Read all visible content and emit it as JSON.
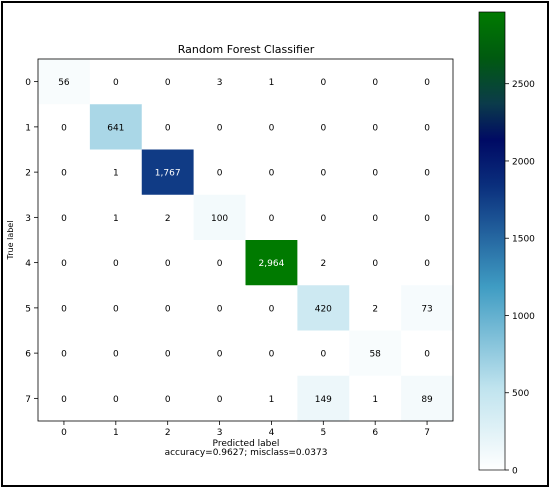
{
  "chart_data": {
    "type": "heatmap",
    "title": "Random Forest Classifier",
    "xlabel": "Predicted label",
    "ylabel": "True label",
    "footnote": "accuracy=0.9627; misclass=0.0373",
    "x_ticks": [
      "0",
      "1",
      "2",
      "3",
      "4",
      "5",
      "6",
      "7"
    ],
    "y_ticks": [
      "0",
      "1",
      "2",
      "3",
      "4",
      "5",
      "6",
      "7"
    ],
    "values": [
      [
        56,
        0,
        0,
        3,
        1,
        0,
        0,
        0
      ],
      [
        0,
        641,
        0,
        0,
        0,
        0,
        0,
        0
      ],
      [
        0,
        1,
        1767,
        0,
        0,
        0,
        0,
        0
      ],
      [
        0,
        1,
        2,
        100,
        0,
        0,
        0,
        0
      ],
      [
        0,
        0,
        0,
        0,
        2964,
        2,
        0,
        0
      ],
      [
        0,
        0,
        0,
        0,
        0,
        420,
        2,
        73
      ],
      [
        0,
        0,
        0,
        0,
        0,
        0,
        58,
        0
      ],
      [
        0,
        0,
        0,
        0,
        1,
        149,
        1,
        89
      ]
    ],
    "cell_labels": [
      [
        "56",
        "0",
        "0",
        "3",
        "1",
        "0",
        "0",
        "0"
      ],
      [
        "0",
        "641",
        "0",
        "0",
        "0",
        "0",
        "0",
        "0"
      ],
      [
        "0",
        "1",
        "1,767",
        "0",
        "0",
        "0",
        "0",
        "0"
      ],
      [
        "0",
        "1",
        "2",
        "100",
        "0",
        "0",
        "0",
        "0"
      ],
      [
        "0",
        "0",
        "0",
        "0",
        "2,964",
        "2",
        "0",
        "0"
      ],
      [
        "0",
        "0",
        "0",
        "0",
        "0",
        "420",
        "2",
        "73"
      ],
      [
        "0",
        "0",
        "0",
        "0",
        "0",
        "0",
        "58",
        "0"
      ],
      [
        "0",
        "0",
        "0",
        "0",
        "1",
        "149",
        "1",
        "89"
      ]
    ],
    "colormap": "ocean_r",
    "color_range": [
      0,
      2964
    ],
    "colorbar_ticks": [
      0,
      500,
      1000,
      1500,
      2000,
      2500
    ],
    "colorbar_tick_labels": [
      "0",
      "500",
      "1000",
      "1500",
      "2000",
      "2500"
    ],
    "colormap_stops": [
      "#ffffff",
      "#bfe3ee",
      "#3f9cc3",
      "#0a2f7d",
      "#000a64",
      "#007a00"
    ],
    "grid": false
  }
}
